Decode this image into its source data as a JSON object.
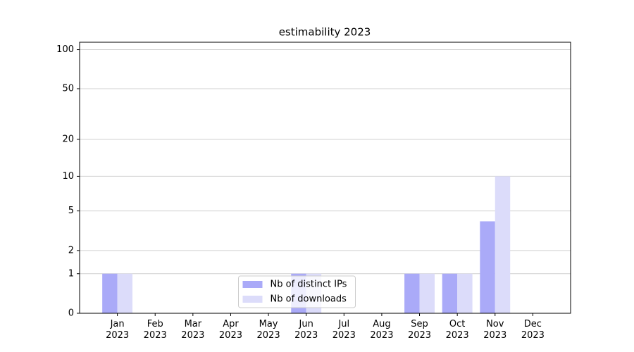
{
  "chart_data": {
    "type": "bar",
    "title": "estimability 2023",
    "categories": [
      "Jan\n2023",
      "Feb\n2023",
      "Mar\n2023",
      "Apr\n2023",
      "May\n2023",
      "Jun\n2023",
      "Jul\n2023",
      "Aug\n2023",
      "Sep\n2023",
      "Oct\n2023",
      "Nov\n2023",
      "Dec\n2023"
    ],
    "series": [
      {
        "name": "Nb of distinct IPs",
        "color": "#aaaaf8",
        "values": [
          1,
          0,
          0,
          0,
          0,
          1,
          0,
          0,
          1,
          1,
          4,
          0
        ]
      },
      {
        "name": "Nb of downloads",
        "color": "#dcdcfa",
        "values": [
          1,
          0,
          0,
          0,
          0,
          1,
          0,
          0,
          1,
          1,
          10,
          0
        ]
      }
    ],
    "yscale": "log1p",
    "ylim": [
      0,
      114
    ],
    "yticks": [
      0,
      1,
      2,
      5,
      10,
      20,
      50,
      100
    ],
    "grid": true,
    "legend": "lower center"
  }
}
